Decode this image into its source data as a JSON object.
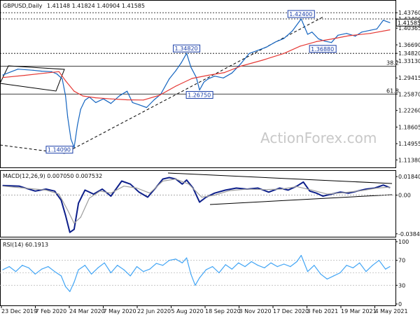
{
  "chart_data": [
    {
      "type": "line",
      "title": "GBPUSD,Daily",
      "ohlc_text": "1.41148 1.41824 1.40904 1.41585",
      "watermark": "ActionForex.com",
      "ylim": [
        1.105,
        1.444
      ],
      "yticks": [
        "1.43760",
        "1.42400",
        "1.41585",
        "1.40365",
        "1.36690",
        "1.34820",
        "1.33130",
        "1.29415",
        "1.25870",
        "1.22260",
        "1.18605",
        "1.14955",
        "1.11380"
      ],
      "xticks": [
        "23 Dec 2019",
        "7 Feb 2020",
        "24 Mar 2020",
        "7 May 2020",
        "22 Jun 2020",
        "5 Aug 2020",
        "18 Sep 2020",
        "3 Nov 2020",
        "17 Dec 2020",
        "3 Feb 2021",
        "19 Mar 2021",
        "4 May 2021"
      ],
      "x_range": [
        0,
        360
      ],
      "series": [
        {
          "color": "#1565c0",
          "x": [
            0,
            14,
            28,
            36,
            45,
            50,
            55,
            58,
            60,
            63,
            66,
            69,
            72,
            76,
            80,
            86,
            93,
            100,
            108,
            115,
            120,
            126,
            133,
            140,
            146,
            154,
            160,
            165,
            170,
            174,
            179,
            182,
            186,
            190,
            196,
            204,
            212,
            220,
            228,
            236,
            244,
            252,
            260,
            268,
            276,
            282,
            286,
            292,
            298,
            304,
            310,
            318,
            326,
            332,
            340,
            346,
            352,
            358
          ],
          "values": [
            1.3005,
            1.3135,
            1.311,
            1.309,
            1.308,
            1.303,
            1.292,
            1.255,
            1.208,
            1.16,
            1.1409,
            1.19,
            1.225,
            1.245,
            1.252,
            1.24,
            1.248,
            1.238,
            1.255,
            1.265,
            1.24,
            1.235,
            1.229,
            1.246,
            1.258,
            1.292,
            1.31,
            1.327,
            1.3482,
            1.318,
            1.295,
            1.2675,
            1.285,
            1.292,
            1.298,
            1.294,
            1.305,
            1.325,
            1.348,
            1.355,
            1.362,
            1.373,
            1.381,
            1.398,
            1.424,
            1.39,
            1.395,
            1.38,
            1.375,
            1.372,
            1.388,
            1.392,
            1.386,
            1.395,
            1.399,
            1.402,
            1.421,
            1.4158
          ]
        },
        {
          "color": "#e53935",
          "x": [
            0,
            20,
            40,
            52,
            58,
            66,
            74,
            86,
            100,
            115,
            130,
            145,
            160,
            175,
            190,
            205,
            220,
            240,
            260,
            275,
            290,
            305,
            320,
            340,
            358
          ],
          "values": [
            1.295,
            1.2998,
            1.305,
            1.308,
            1.288,
            1.265,
            1.2545,
            1.2505,
            1.248,
            1.246,
            1.2455,
            1.256,
            1.276,
            1.293,
            1.3,
            1.306,
            1.32,
            1.333,
            1.348,
            1.364,
            1.374,
            1.38,
            1.387,
            1.392,
            1.4
          ]
        }
      ],
      "horizontal_levels": [
        {
          "value": 1.4376,
          "label": "",
          "style": "dashed"
        },
        {
          "value": 1.424,
          "label": "",
          "style": "dashed"
        },
        {
          "value": 1.3482,
          "label": "",
          "style": "dashed"
        },
        {
          "value": 1.32,
          "label": "38.2",
          "style": "solid"
        },
        {
          "value": 1.2587,
          "label": "61.8",
          "style": "solid"
        }
      ],
      "annotations": [
        {
          "text": "1.42400",
          "x": 276,
          "y": 1.424
        },
        {
          "text": "1.34820",
          "x": 170,
          "y": 1.3482
        },
        {
          "text": "1.26750",
          "x": 182,
          "y": 1.2675
        },
        {
          "text": "1.36880",
          "x": 296,
          "y": 1.3688
        },
        {
          "text": "1.14090",
          "x": 66,
          "y": 1.1409
        }
      ],
      "current_price": {
        "value": 1.41585,
        "label": "1.41585"
      }
    },
    {
      "type": "line",
      "title": "MACD(12,26,9) 0.007050 0.007532",
      "ylim": [
        -0.04,
        0.022
      ],
      "yticks": [
        "0.018403",
        "0.00",
        "-0.038483"
      ],
      "series": [
        {
          "color": "#0d1f8a",
          "x": [
            0,
            15,
            30,
            40,
            48,
            54,
            58,
            62,
            66,
            70,
            76,
            84,
            92,
            100,
            110,
            118,
            126,
            134,
            142,
            148,
            154,
            160,
            166,
            170,
            176,
            182,
            188,
            196,
            206,
            216,
            226,
            236,
            246,
            256,
            264,
            272,
            278,
            284,
            290,
            296,
            304,
            312,
            320,
            328,
            336,
            344,
            352,
            358
          ],
          "values": [
            0.0095,
            0.009,
            0.004,
            0.006,
            0.004,
            -0.005,
            -0.02,
            -0.037,
            -0.034,
            -0.008,
            0.005,
            0.001,
            0.006,
            -0.001,
            0.014,
            0.011,
            0.003,
            -0.002,
            0.008,
            0.016,
            0.0175,
            0.016,
            0.011,
            0.015,
            0.007,
            -0.007,
            -0.002,
            0.002,
            0.005,
            0.007,
            0.006,
            0.007,
            0.003,
            0.007,
            0.005,
            0.009,
            0.013,
            0.004,
            0.002,
            -0.001,
            0.001,
            0.003,
            0.002,
            0.004,
            0.006,
            0.007,
            0.01,
            0.0075
          ]
        },
        {
          "color": "#9e9e9e",
          "x": [
            0,
            20,
            40,
            52,
            60,
            66,
            72,
            80,
            90,
            100,
            112,
            124,
            136,
            148,
            160,
            172,
            184,
            196,
            210,
            226,
            242,
            258,
            272,
            286,
            300,
            316,
            332,
            346,
            358
          ],
          "values": [
            0.009,
            0.007,
            0.005,
            0.001,
            -0.015,
            -0.028,
            -0.022,
            -0.003,
            0.004,
            0.002,
            0.009,
            0.007,
            0.002,
            0.014,
            0.016,
            0.011,
            -0.002,
            0.0,
            0.0045,
            0.006,
            0.0055,
            0.006,
            0.0085,
            0.005,
            0.001,
            0.0025,
            0.0045,
            0.007,
            0.008
          ]
        }
      ]
    },
    {
      "type": "line",
      "title": "RSI(14) 60.1913",
      "ylim": [
        0,
        100
      ],
      "yticks": [
        "100",
        "70",
        "30",
        "0"
      ],
      "series": [
        {
          "color": "#42a5f5",
          "x": [
            0,
            6,
            12,
            18,
            24,
            30,
            36,
            42,
            48,
            54,
            58,
            62,
            66,
            70,
            76,
            82,
            88,
            94,
            100,
            106,
            112,
            118,
            124,
            130,
            136,
            142,
            148,
            154,
            160,
            166,
            170,
            174,
            178,
            182,
            188,
            194,
            200,
            206,
            212,
            218,
            224,
            230,
            236,
            242,
            248,
            254,
            260,
            266,
            272,
            276,
            282,
            288,
            294,
            300,
            306,
            312,
            318,
            324,
            330,
            336,
            342,
            348,
            354,
            358
          ],
          "values": [
            55,
            60,
            52,
            62,
            58,
            48,
            56,
            60,
            52,
            45,
            28,
            20,
            35,
            55,
            62,
            48,
            58,
            66,
            50,
            62,
            55,
            45,
            60,
            52,
            56,
            65,
            62,
            70,
            72,
            66,
            74,
            48,
            30,
            42,
            55,
            60,
            50,
            63,
            56,
            66,
            60,
            68,
            62,
            58,
            66,
            60,
            64,
            60,
            68,
            78,
            52,
            62,
            48,
            40,
            45,
            50,
            62,
            58,
            66,
            52,
            62,
            70,
            56,
            60
          ]
        }
      ]
    }
  ]
}
